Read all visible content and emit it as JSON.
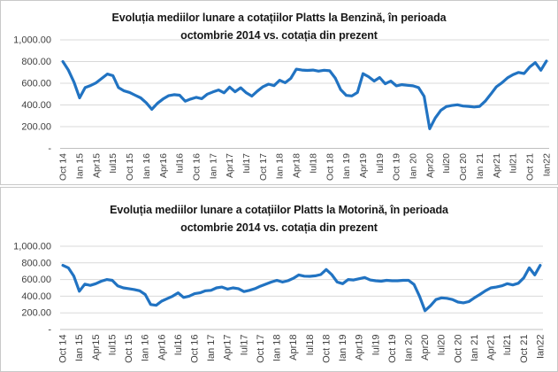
{
  "accent_color": "#2173c2",
  "grid_color": "#d9d9d9",
  "axis_color": "#bfbfbf",
  "chart_data": [
    {
      "type": "line",
      "title": "Evoluția mediilor lunare a cotațiilor Platts la Benzină, în perioada octombrie 2014 vs. cotația din prezent",
      "title_lines": [
        "Evoluția mediilor lunare a cotațiilor Platts la Benzină, în perioada",
        "octombrie 2014 vs. cotația din prezent"
      ],
      "xlabel": "",
      "ylabel": "",
      "ylim": [
        0,
        1000
      ],
      "grid": true,
      "legend": "none",
      "x_unit": "month",
      "x_range": [
        "Oct 14",
        "Ian22"
      ],
      "x_tick_labels": [
        "Oct 14",
        "Ian 15",
        "Apr15",
        "Iul15",
        "Oct 15",
        "Ian 16",
        "Apr16",
        "Iul16",
        "Oct 16",
        "Ian 17",
        "Apr17",
        "Iul17",
        "Oct 17",
        "Ian 18",
        "Apr18",
        "Iul18",
        "Oct 18",
        "Ian 19",
        "Apr19",
        "Iul19",
        "Oct 19",
        "Ian 20",
        "Apr20",
        "Iul20",
        "Oct 20",
        "Ian 21",
        "Apr21",
        "Iul21",
        "Oct 21",
        "Ian22"
      ],
      "y_tick_labels": [
        "1,000.00",
        "800.00",
        "600.00",
        "400.00",
        "200.00",
        "-"
      ],
      "y_tick_values": [
        1000,
        800,
        600,
        400,
        200,
        0
      ],
      "series": [
        {
          "name": "Benzină",
          "values": [
            800,
            720,
            610,
            465,
            560,
            580,
            605,
            645,
            685,
            670,
            560,
            530,
            515,
            490,
            465,
            420,
            360,
            415,
            455,
            485,
            495,
            490,
            435,
            455,
            470,
            458,
            500,
            520,
            538,
            512,
            565,
            522,
            558,
            512,
            482,
            528,
            568,
            592,
            578,
            628,
            605,
            645,
            730,
            722,
            718,
            722,
            712,
            720,
            715,
            648,
            540,
            488,
            483,
            515,
            688,
            660,
            620,
            653,
            595,
            620,
            576,
            587,
            581,
            576,
            560,
            480,
            180,
            280,
            350,
            385,
            395,
            402,
            390,
            387,
            381,
            387,
            435,
            500,
            567,
            605,
            650,
            680,
            700,
            690,
            750,
            790,
            720,
            805
          ]
        }
      ]
    },
    {
      "type": "line",
      "title": "Evoluția mediilor lunare a cotațiilor Platts la Motorină, în perioada octombrie 2014 vs. cotația din prezent",
      "title_lines": [
        "Evoluția mediilor lunare a cotațiilor Platts la Motorină, în perioada",
        "octombrie 2014 vs. cotația din prezent"
      ],
      "xlabel": "",
      "ylabel": "",
      "ylim": [
        0,
        1000
      ],
      "grid": true,
      "legend": "none",
      "x_unit": "month",
      "x_range": [
        "Oct 14",
        "Ian22"
      ],
      "x_tick_labels": [
        "Oct 14",
        "Ian 15",
        "Apr15",
        "Iul15",
        "Oct 15",
        "Ian 16",
        "Apr16",
        "Iul16",
        "Oct 16",
        "Ian 17",
        "Apr17",
        "Iul17",
        "Oct 17",
        "Ian 18",
        "Apr18",
        "Iul18",
        "Oct 18",
        "Ian 19",
        "Apr19",
        "Iul19",
        "Oct 19",
        "Ian 20",
        "Apr20",
        "Iul20",
        "Oct 20",
        "Ian 21",
        "Apr21",
        "Iul21",
        "Oct 21",
        "Ian22"
      ],
      "y_tick_labels": [
        "1,000.00",
        "800.00",
        "600.00",
        "400.00",
        "200.00",
        "-"
      ],
      "y_tick_values": [
        1000,
        800,
        600,
        400,
        200,
        0
      ],
      "series": [
        {
          "name": "Motorină",
          "values": [
            770,
            740,
            640,
            460,
            545,
            530,
            550,
            580,
            600,
            590,
            525,
            500,
            490,
            480,
            465,
            420,
            300,
            290,
            340,
            370,
            400,
            440,
            385,
            400,
            430,
            440,
            465,
            470,
            500,
            510,
            485,
            500,
            490,
            455,
            470,
            490,
            520,
            545,
            570,
            590,
            570,
            585,
            615,
            655,
            640,
            638,
            645,
            660,
            720,
            660,
            570,
            550,
            600,
            595,
            610,
            625,
            595,
            585,
            580,
            590,
            585,
            585,
            590,
            590,
            540,
            400,
            225,
            285,
            360,
            380,
            375,
            360,
            330,
            320,
            335,
            380,
            420,
            465,
            500,
            510,
            525,
            550,
            535,
            555,
            620,
            740,
            655,
            770
          ]
        }
      ]
    }
  ]
}
